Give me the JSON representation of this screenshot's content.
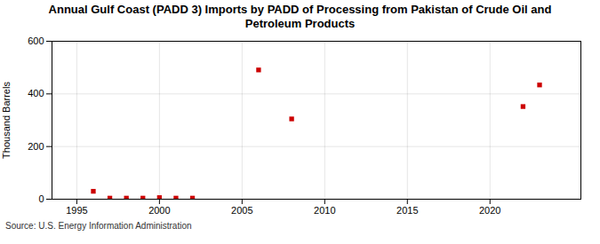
{
  "chart_data": {
    "type": "scatter",
    "title": "Annual Gulf Coast (PADD 3) Imports by PADD of Processing from Pakistan of Crude Oil and\nPetroleum Products",
    "ylabel": "Thousand Barrels",
    "annotation": "Source: U.S. Energy Information Administration",
    "x": [
      1996,
      1997,
      1998,
      1999,
      2000,
      2001,
      2002,
      2006,
      2008,
      2022,
      2023
    ],
    "values": [
      30,
      4,
      4,
      4,
      6,
      4,
      4,
      491,
      305,
      352,
      434
    ],
    "color": "#cc0000",
    "marker": "square",
    "xlim": [
      1993.5,
      2025.5
    ],
    "xticks": [
      1995,
      2000,
      2005,
      2010,
      2015,
      2020
    ],
    "ylim": [
      0,
      600
    ],
    "yticks": [
      0,
      200,
      400,
      600
    ],
    "grid": true
  }
}
